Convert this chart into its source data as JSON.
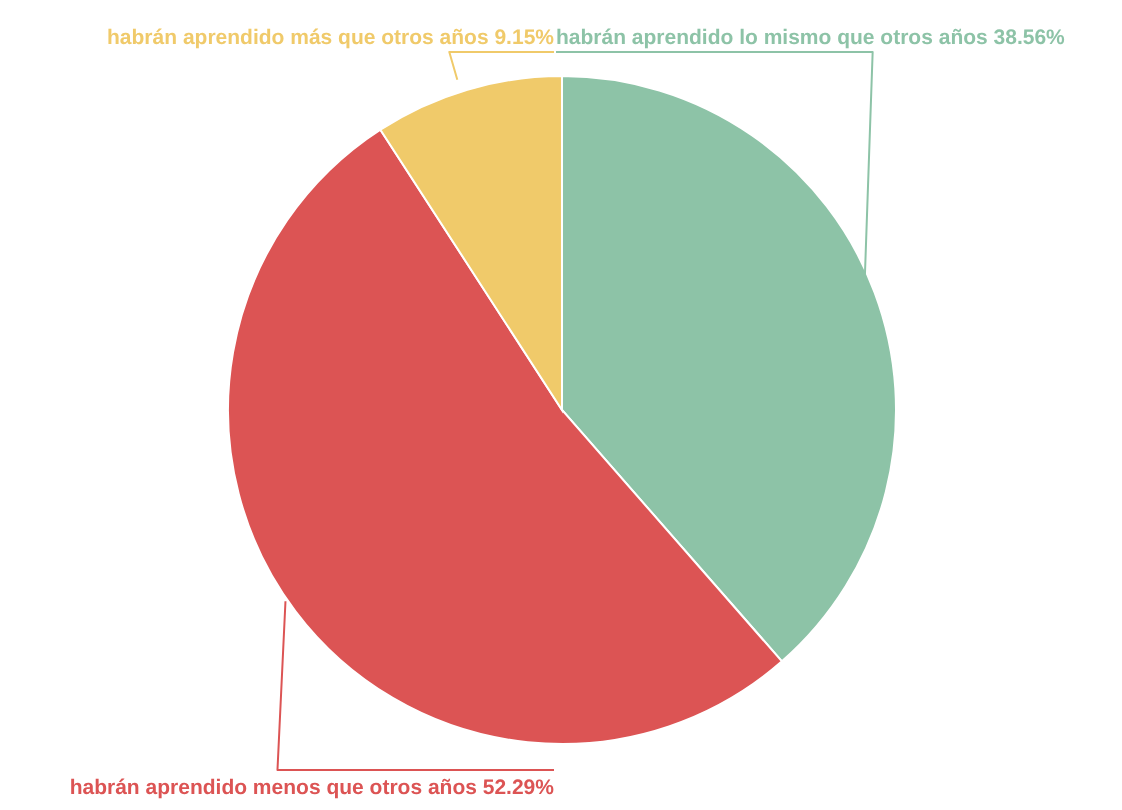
{
  "chart_data": {
    "type": "pie",
    "categories": [
      "habrán aprendido lo mismo que otros años",
      "habrán aprendido menos que otros años",
      "habrán aprendido más que otros años"
    ],
    "values": [
      38.56,
      52.29,
      9.15
    ],
    "value_labels": [
      "38.56%",
      "52.29%",
      "9.15%"
    ],
    "colors": [
      "#8dc3a7",
      "#dc5454",
      "#f0ca6a"
    ],
    "legend": false
  }
}
